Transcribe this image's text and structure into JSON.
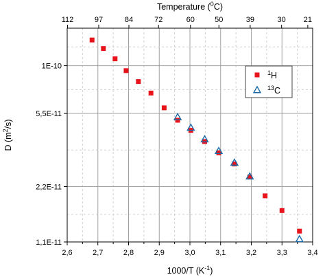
{
  "chart_data": {
    "type": "scatter",
    "xlabel": "1000/T (K",
    "xlabel_sup": "-1",
    "xlabel_end": ")",
    "ylabel": "D (m",
    "ylabel_sup": "2",
    "ylabel_end": "/s)",
    "top_axis_title": "Temperature (",
    "top_axis_title_sup": "0",
    "top_axis_title_end": "C)",
    "xlim": [
      2.6,
      3.4
    ],
    "ylim": [
      1.1e-11,
      1.6e-10
    ],
    "y_scale": "log",
    "x_ticks": [
      2.6,
      2.7,
      2.8,
      2.9,
      3.0,
      3.1,
      3.2,
      3.3,
      3.4
    ],
    "x_tick_labels": [
      "2,6",
      "2,7",
      "2,8",
      "2,9",
      "3,0",
      "3,1",
      "3,2",
      "3,3",
      "3,4"
    ],
    "y_ticks": [
      1.1e-11,
      2.2e-11,
      5.5e-11,
      1e-10
    ],
    "y_tick_labels": [
      "1,1E-11",
      "2,2E-11",
      "5,5E-11",
      "1E-10"
    ],
    "top_ticks_x": [
      2.6012,
      2.7027,
      2.8011,
      2.8977,
      3.0017,
      3.0945,
      3.1964,
      3.2987,
      3.3841
    ],
    "top_tick_labels": [
      "112",
      "97",
      "84",
      "72",
      "60",
      "50",
      "39",
      "30",
      "21"
    ],
    "grid": true,
    "legend_position": "upper-right",
    "series": [
      {
        "name": "H",
        "name_sup": "1",
        "marker": "square",
        "color": "#e8141c",
        "points": [
          [
            2.681,
            1.38e-10
          ],
          [
            2.718,
            1.24e-10
          ],
          [
            2.756,
            1.09e-10
          ],
          [
            2.792,
            9.4e-11
          ],
          [
            2.832,
            8.2e-11
          ],
          [
            2.873,
            7.1e-11
          ],
          [
            2.916,
            5.9e-11
          ],
          [
            2.96,
            5.05e-11
          ],
          [
            3.003,
            4.45e-11
          ],
          [
            3.048,
            3.87e-11
          ],
          [
            3.094,
            3.36e-11
          ],
          [
            3.145,
            2.92e-11
          ],
          [
            3.195,
            2.48e-11
          ],
          [
            3.245,
            1.96e-11
          ],
          [
            3.3,
            1.63e-11
          ],
          [
            3.357,
            1.26e-11
          ]
        ]
      },
      {
        "name": "C",
        "name_sup": "13",
        "marker": "triangle",
        "color": "#1a6aa8",
        "points": [
          [
            2.96,
            5.25e-11
          ],
          [
            3.003,
            4.6e-11
          ],
          [
            3.048,
            3.98e-11
          ],
          [
            3.094,
            3.44e-11
          ],
          [
            3.145,
            2.97e-11
          ],
          [
            3.195,
            2.5e-11
          ],
          [
            3.357,
            1.14e-11
          ]
        ]
      }
    ]
  }
}
